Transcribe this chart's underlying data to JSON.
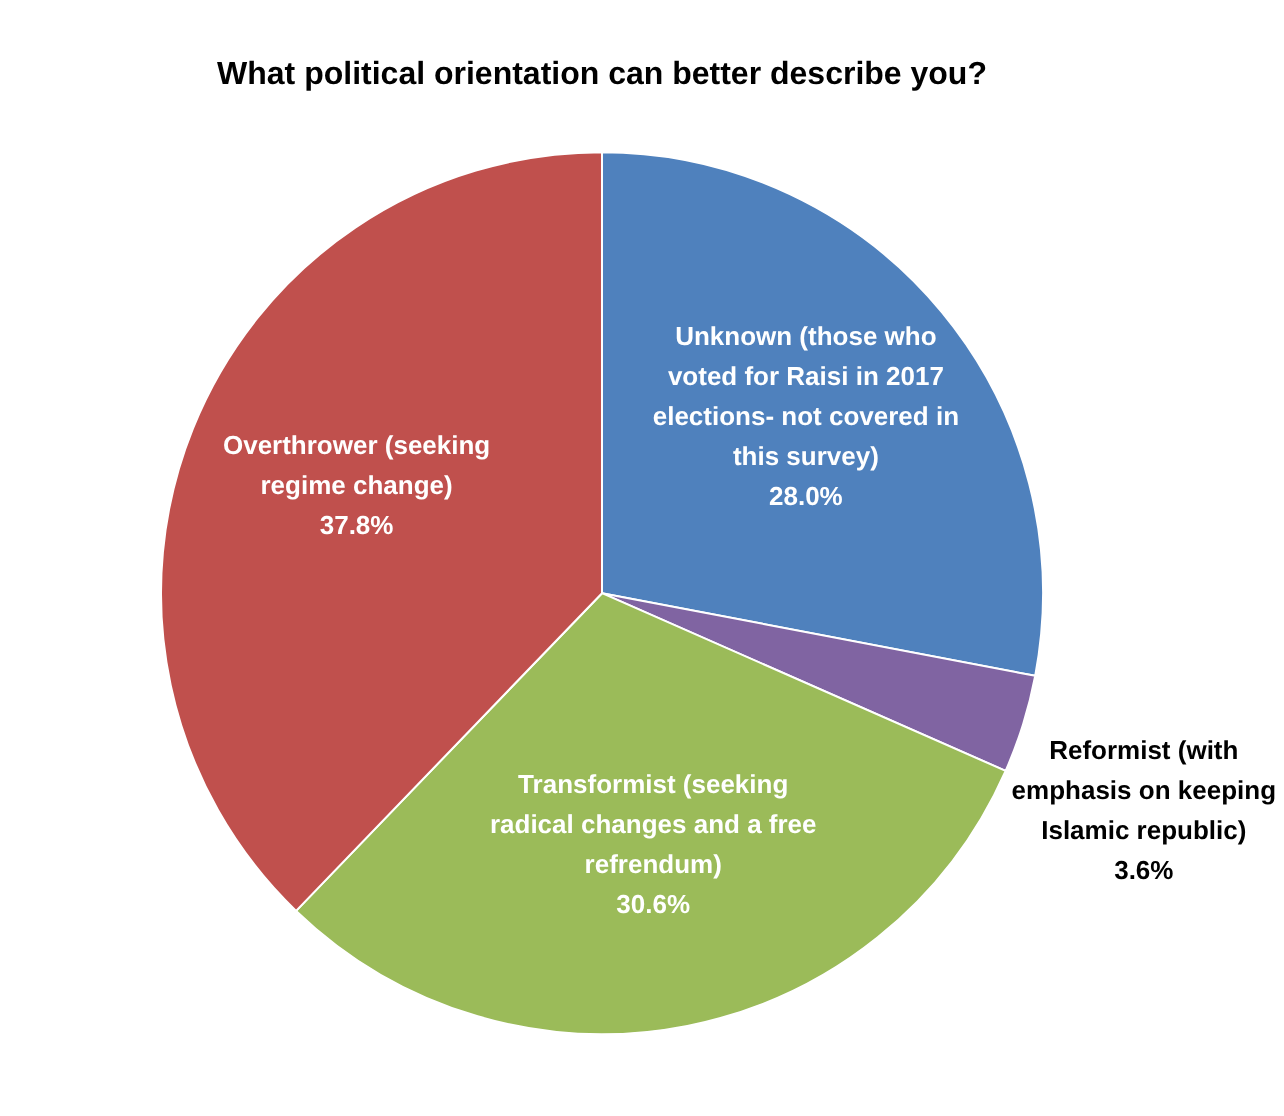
{
  "chart_data": {
    "type": "pie",
    "title": "What political orientation can better describe you?",
    "categories": [
      "Unknown (those who voted for Raisi in 2017 elections- not covered in this survey)",
      "Reformist (with emphasis on keeping Islamic republic)",
      "Transformist (seeking radical changes and a free refrendum)",
      "Overthrower (seeking regime change)"
    ],
    "values": [
      28.0,
      3.6,
      30.6,
      37.8
    ],
    "value_labels": [
      "28.0%",
      "3.6%",
      "30.6%",
      "37.8%"
    ],
    "colors": [
      "#4f81bd",
      "#8064a2",
      "#9bbb59",
      "#c0504d"
    ],
    "legend": false
  }
}
